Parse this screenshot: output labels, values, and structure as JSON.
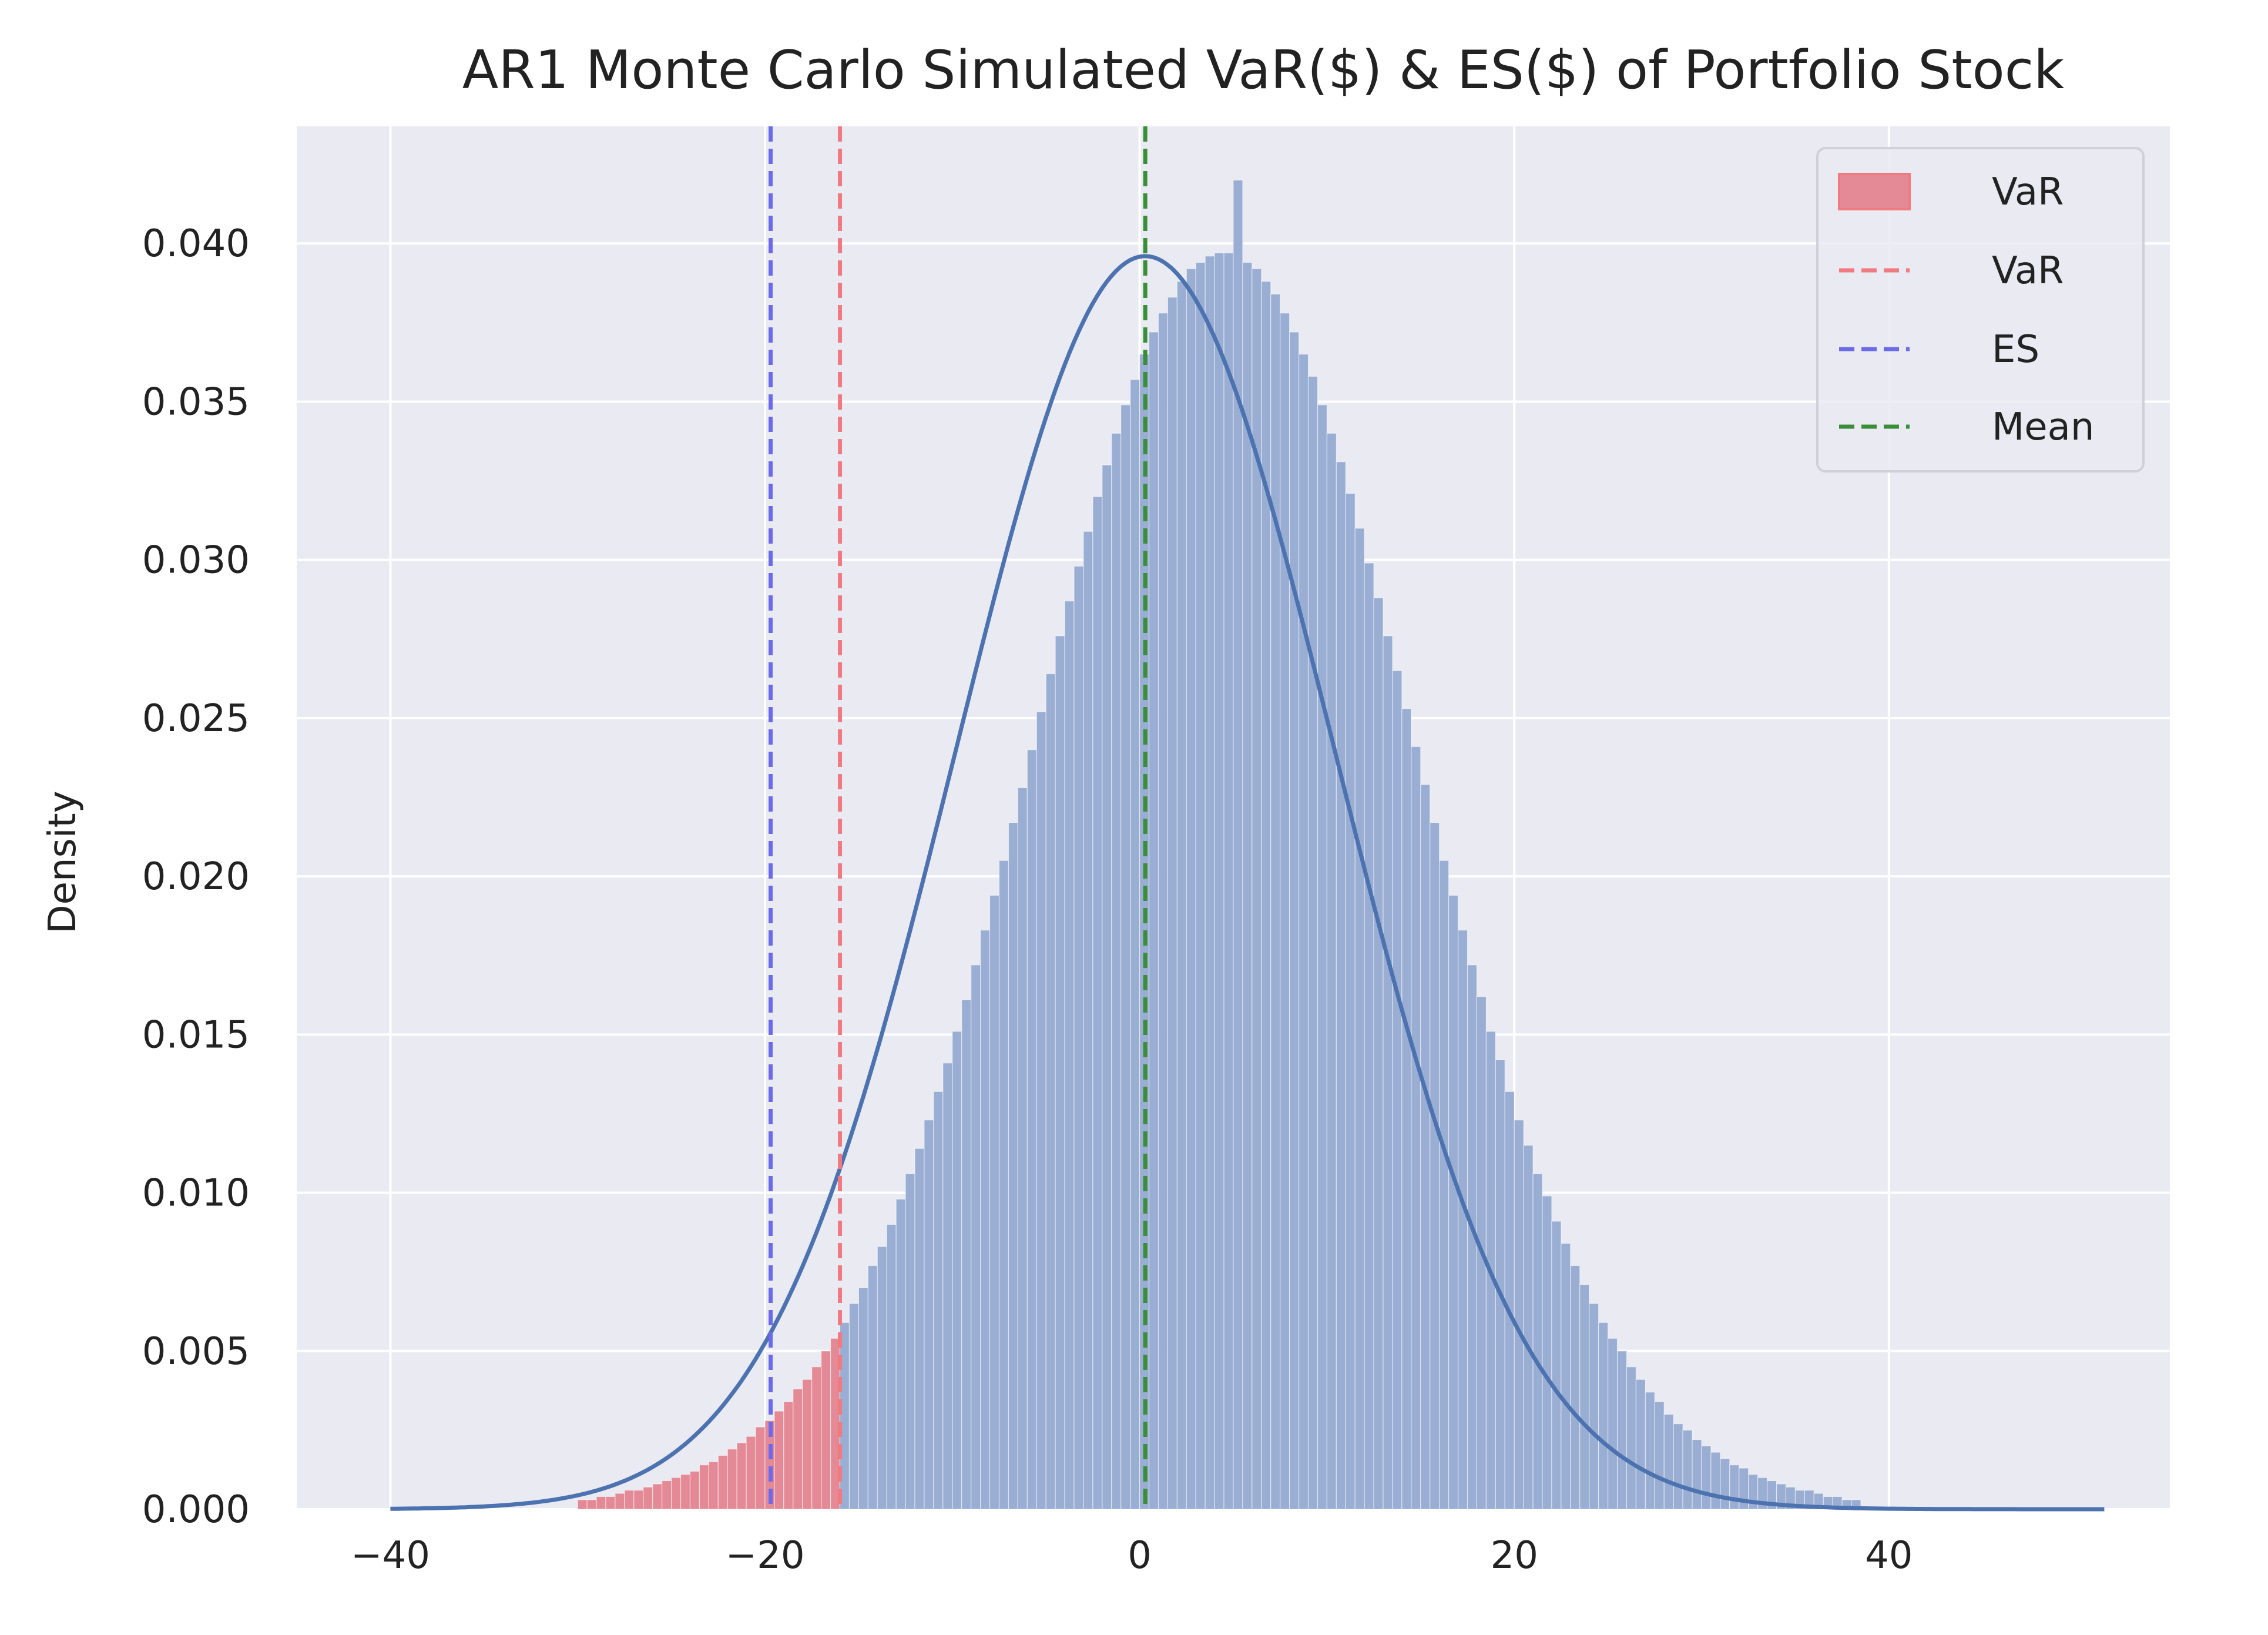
{
  "chart_data": {
    "type": "histogram",
    "title": "AR1 Monte Carlo Simulated VaR($) & ES($) of Portfolio Stock",
    "xlabel": "",
    "ylabel": "Density",
    "xlim": [
      -45,
      55
    ],
    "ylim": [
      0,
      0.0437
    ],
    "x_ticks": [
      -40,
      -20,
      0,
      20,
      40
    ],
    "x_tick_labels": [
      "−40",
      "−20",
      "0",
      "20",
      "40"
    ],
    "y_ticks": [
      0,
      0.005,
      0.01,
      0.015,
      0.02,
      0.025,
      0.03,
      0.035,
      0.04
    ],
    "y_tick_labels": [
      "0.000",
      "0.005",
      "0.010",
      "0.015",
      "0.020",
      "0.025",
      "0.030",
      "0.035",
      "0.040"
    ],
    "grid": true,
    "legend_position": "top-right",
    "distribution": {
      "name": "",
      "x_min": -40,
      "x_max": 51.5,
      "kde_mean": 0.3,
      "kde_std": 10.1,
      "kde_peak": 0.0396
    },
    "bins": {
      "start": -40,
      "width": 0.5,
      "densities": [
        0.0,
        0.0,
        0.0,
        0.0,
        0.0,
        0.0,
        0.0,
        0.0,
        0.0,
        0.0,
        0.0,
        0.0,
        0.0,
        0.0,
        0.0,
        0.0,
        0.0,
        0.0,
        0.0,
        0.0,
        0.0003,
        0.0003,
        0.0004,
        0.0004,
        0.0005,
        0.0006,
        0.0006,
        0.0007,
        0.0008,
        0.0009,
        0.001,
        0.0011,
        0.0012,
        0.0014,
        0.0015,
        0.0017,
        0.0019,
        0.0021,
        0.0023,
        0.0026,
        0.0028,
        0.0031,
        0.0034,
        0.0038,
        0.0041,
        0.0045,
        0.005,
        0.0054,
        0.0059,
        0.0065,
        0.007,
        0.0077,
        0.0083,
        0.009,
        0.0098,
        0.0106,
        0.0114,
        0.0123,
        0.0132,
        0.0141,
        0.0151,
        0.0161,
        0.0172,
        0.0183,
        0.0194,
        0.0205,
        0.0217,
        0.0228,
        0.024,
        0.0252,
        0.0264,
        0.0276,
        0.0287,
        0.0298,
        0.0309,
        0.032,
        0.033,
        0.034,
        0.0349,
        0.0357,
        0.0365,
        0.0372,
        0.0378,
        0.0383,
        0.0388,
        0.0392,
        0.0394,
        0.0396,
        0.0397,
        0.0397,
        0.042,
        0.0394,
        0.0392,
        0.0388,
        0.0384,
        0.0378,
        0.0372,
        0.0365,
        0.0358,
        0.0349,
        0.034,
        0.0331,
        0.0321,
        0.031,
        0.0299,
        0.0288,
        0.0276,
        0.0265,
        0.0253,
        0.0241,
        0.0229,
        0.0217,
        0.0205,
        0.0194,
        0.0183,
        0.0172,
        0.0162,
        0.0151,
        0.0142,
        0.0132,
        0.0123,
        0.0115,
        0.0106,
        0.0099,
        0.0091,
        0.0084,
        0.0077,
        0.0071,
        0.0065,
        0.0059,
        0.0054,
        0.005,
        0.0045,
        0.0041,
        0.0037,
        0.0034,
        0.003,
        0.0027,
        0.0025,
        0.0022,
        0.002,
        0.0018,
        0.0016,
        0.0014,
        0.0013,
        0.0011,
        0.001,
        0.0009,
        0.0008,
        0.0007,
        0.0006,
        0.0006,
        0.0005,
        0.0004,
        0.0004,
        0.0003,
        0.0003,
        0.0,
        0.0,
        0.0,
        0.0,
        0.0,
        0.0,
        0.0,
        0.0,
        0.0,
        0.0,
        0.0,
        0.0,
        0.0,
        0.0,
        0.0,
        0.0,
        0.0,
        0.0,
        0.0,
        0.0,
        0.0,
        0.0,
        0.0,
        0.0,
        0.0,
        0.0,
        0.0
      ]
    },
    "var_region": {
      "label": "VaR",
      "x_max": -16.0
    },
    "lines": [
      {
        "label": "VaR",
        "x": -16.0,
        "style": "dashed"
      },
      {
        "label": "ES",
        "x": -19.7,
        "style": "dashed"
      },
      {
        "label": "Mean",
        "x": 0.3,
        "style": "dashed"
      }
    ],
    "legend": [
      "VaR",
      "VaR",
      "ES",
      "Mean"
    ]
  },
  "colors": {
    "background": "#ffffff",
    "plot_background": "#eaeaf2",
    "grid": "#ffffff",
    "hist_fill": "#9aaed3",
    "kde_line": "#4c72b0",
    "var_fill": "#e48a97",
    "var_line": "#f07a80",
    "es_line": "#6b6bea",
    "mean_line": "#3a8e3a",
    "text": "#222222"
  }
}
